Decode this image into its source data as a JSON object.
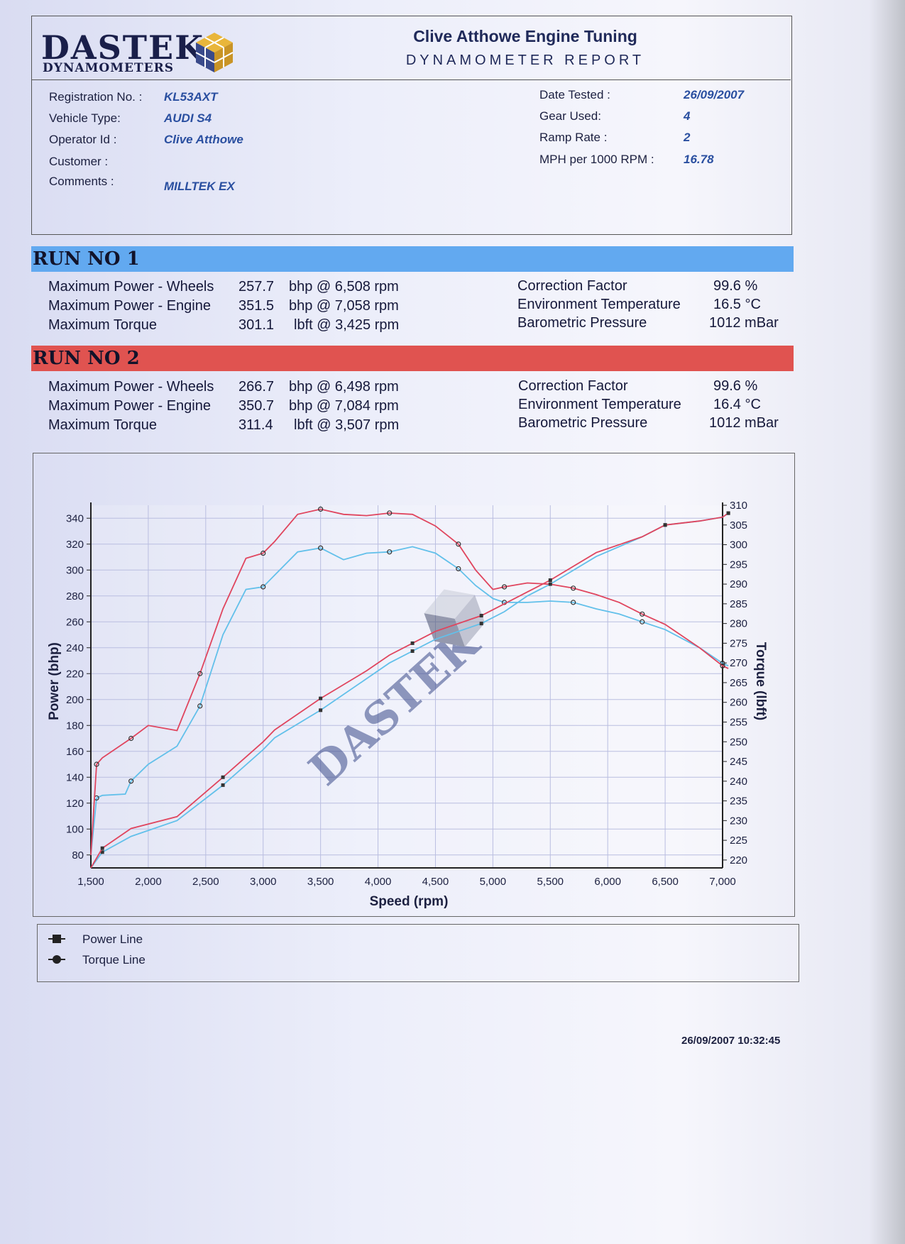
{
  "header": {
    "logo_text": "DASTEK",
    "logo_sub": "DYNAMOMETERS",
    "company": "Clive Atthowe Engine Tuning",
    "report_title": "DYNAMOMETER REPORT"
  },
  "fields_left": [
    {
      "label": "Registration No. :",
      "value": "KL53AXT"
    },
    {
      "label": "Vehicle Type:",
      "value": "AUDI S4"
    },
    {
      "label": "Operator Id :",
      "value": "Clive Atthowe"
    },
    {
      "label": "Customer :",
      "value": ""
    },
    {
      "label": "Comments :",
      "value": "MILLTEK EX"
    }
  ],
  "fields_right": [
    {
      "label": "Date Tested :",
      "value": "26/09/2007"
    },
    {
      "label": "Gear Used:",
      "value": "4"
    },
    {
      "label": "Ramp Rate :",
      "value": "2"
    },
    {
      "label": "MPH per 1000 RPM :",
      "value": "16.78"
    }
  ],
  "runs": [
    {
      "title": "RUN NO 1",
      "color": "#62a9f0",
      "rows": [
        {
          "label": "Maximum Power - Wheels",
          "value": "257.7",
          "unit": "bhp @ 6,508 rpm"
        },
        {
          "label": "Maximum Power - Engine",
          "value": "351.5",
          "unit": "bhp @ 7,058 rpm"
        },
        {
          "label": "Maximum Torque",
          "value": "301.1",
          "unit": "lbft @ 3,425 rpm"
        }
      ],
      "env": [
        {
          "label": "Correction Factor",
          "value": "99.6 %"
        },
        {
          "label": "Environment Temperature",
          "value": "16.5 °C"
        },
        {
          "label": "Barometric Pressure",
          "value": "1012 mBar"
        }
      ]
    },
    {
      "title": "RUN NO 2",
      "color": "#e05350",
      "rows": [
        {
          "label": "Maximum Power - Wheels",
          "value": "266.7",
          "unit": "bhp @ 6,498 rpm"
        },
        {
          "label": "Maximum Power - Engine",
          "value": "350.7",
          "unit": "bhp @ 7,084 rpm"
        },
        {
          "label": "Maximum Torque",
          "value": "311.4",
          "unit": "lbft @ 3,507 rpm"
        }
      ],
      "env": [
        {
          "label": "Correction Factor",
          "value": "99.6 %"
        },
        {
          "label": "Environment Temperature",
          "value": "16.4 °C"
        },
        {
          "label": "Barometric Pressure",
          "value": "1012 mBar"
        }
      ]
    }
  ],
  "chart_data": {
    "type": "line",
    "xlabel": "Speed (rpm)",
    "ylabel": "Power (bhp)",
    "y2label": "Torque (lbft)",
    "xlim": [
      1500,
      7000
    ],
    "ylim": [
      70,
      350
    ],
    "y2lim": [
      218,
      310
    ],
    "xticks": [
      1500,
      2000,
      2500,
      3000,
      3500,
      4000,
      4500,
      5000,
      5500,
      6000,
      6500,
      7000
    ],
    "xtick_labels": [
      "1,500",
      "2,000",
      "2,500",
      "3,000",
      "3,500",
      "4,000",
      "4,500",
      "5,000",
      "5,500",
      "6,000",
      "6,500",
      "7,000"
    ],
    "yticks": [
      80,
      100,
      120,
      140,
      160,
      180,
      200,
      220,
      240,
      260,
      280,
      300,
      320,
      340
    ],
    "y2ticks": [
      220,
      225,
      230,
      235,
      240,
      245,
      250,
      255,
      260,
      265,
      270,
      275,
      280,
      285,
      290,
      295,
      300,
      305,
      310
    ],
    "grid": true,
    "series": [
      {
        "run": "RUN NO 1",
        "kind": "power",
        "color": "#62c0ea",
        "x": [
          1500,
          1550,
          1600,
          1800,
          1850,
          2000,
          2250,
          2450,
          2650,
          2850,
          3000,
          3100,
          3300,
          3500,
          3700,
          3900,
          4100,
          4300,
          4500,
          4700,
          4850,
          5000,
          5100,
          5300,
          5500,
          5700,
          5900,
          6100,
          6300,
          6500,
          6800,
          7000,
          7050
        ],
        "y": [
          80,
          124,
          126,
          127,
          137,
          150,
          164,
          195,
          250,
          285,
          287,
          296,
          314,
          317,
          308,
          313,
          314,
          318,
          313,
          301,
          288,
          278,
          275,
          275,
          276,
          275,
          270,
          266,
          260,
          254,
          240,
          228,
          226
        ]
      },
      {
        "run": "RUN NO 2",
        "kind": "power",
        "color": "#e0455e",
        "x": [
          1500,
          1550,
          1600,
          1800,
          1850,
          2000,
          2250,
          2450,
          2650,
          2850,
          3000,
          3100,
          3300,
          3500,
          3700,
          3900,
          4100,
          4300,
          4500,
          4700,
          4850,
          5000,
          5100,
          5300,
          5500,
          5700,
          5900,
          6100,
          6300,
          6500,
          6800,
          7000,
          7050
        ],
        "y": [
          80,
          150,
          155,
          167,
          170,
          180,
          176,
          220,
          270,
          309,
          313,
          322,
          343,
          347,
          343,
          342,
          344,
          343,
          334,
          320,
          300,
          285,
          287,
          290,
          289,
          286,
          281,
          275,
          266,
          258,
          240,
          226,
          224
        ]
      },
      {
        "run": "RUN NO 1",
        "kind": "torque",
        "color": "#62c0ea",
        "x": [
          1500,
          1600,
          1850,
          2250,
          2650,
          3000,
          3100,
          3500,
          3900,
          4100,
          4300,
          4500,
          4700,
          4900,
          5100,
          5300,
          5500,
          5900,
          6300,
          6500,
          6800,
          7000,
          7050
        ],
        "y": [
          218,
          222,
          226,
          230,
          239,
          248,
          251,
          258,
          266,
          270,
          273,
          276,
          278,
          280,
          283,
          287,
          290,
          297,
          302,
          305,
          306,
          307,
          308
        ]
      },
      {
        "run": "RUN NO 2",
        "kind": "torque",
        "color": "#e0455e",
        "x": [
          1500,
          1600,
          1850,
          2250,
          2650,
          3000,
          3100,
          3500,
          3900,
          4100,
          4300,
          4500,
          4700,
          4900,
          5100,
          5300,
          5500,
          5900,
          6300,
          6500,
          6800,
          7000,
          7050
        ],
        "y": [
          218,
          223,
          228,
          231,
          241,
          250,
          253,
          261,
          268,
          272,
          275,
          278,
          280,
          282,
          285,
          288,
          291,
          298,
          302,
          305,
          306,
          307,
          308
        ]
      }
    ]
  },
  "legend": [
    {
      "label": "Power Line",
      "icon": "square-marker-icon"
    },
    {
      "label": "Torque Line",
      "icon": "circle-marker-icon"
    }
  ],
  "timestamp": "26/09/2007 10:32:45"
}
